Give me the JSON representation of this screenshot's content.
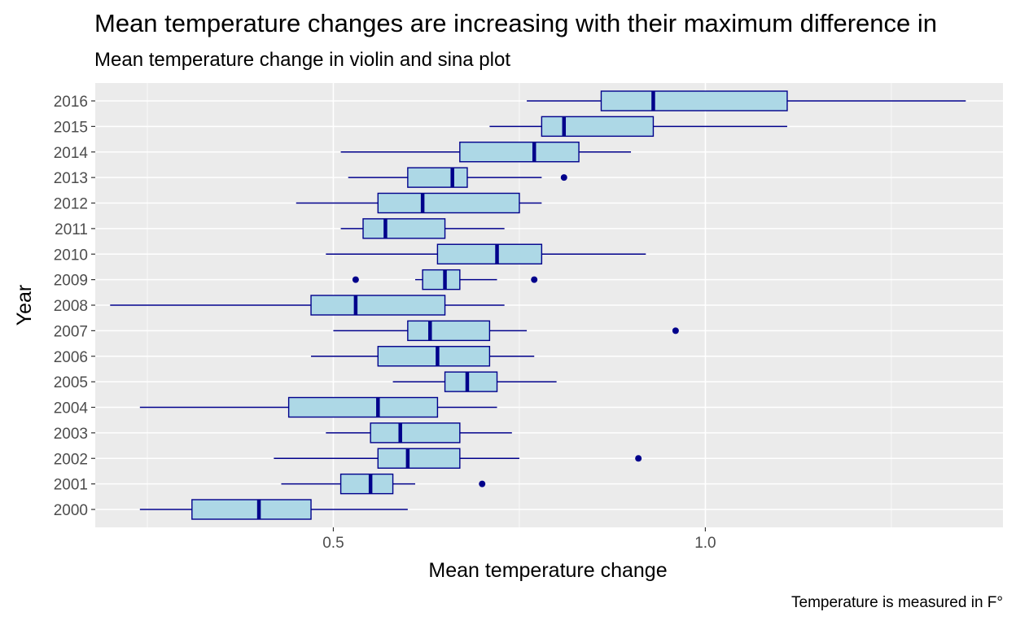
{
  "chart_data": {
    "type": "box",
    "title": "Mean temperature changes are increasing with their maximum difference in",
    "subtitle": "Mean temperature change in violin and sina plot",
    "xlabel": "Mean temperature change",
    "ylabel": "Year",
    "caption": "Temperature is measured in F°",
    "xlim": [
      0.18,
      1.4
    ],
    "x_ticks": [
      0.5,
      1.0
    ],
    "x_tick_labels": [
      "0.5",
      "1.0"
    ],
    "grid": true,
    "colors": {
      "panel": "#ebebeb",
      "grid": "#ffffff",
      "box_fill": "#add8e6",
      "box_stroke": "#00008b"
    },
    "categories": [
      "2000",
      "2001",
      "2002",
      "2003",
      "2004",
      "2005",
      "2006",
      "2007",
      "2008",
      "2009",
      "2010",
      "2011",
      "2012",
      "2013",
      "2014",
      "2015",
      "2016"
    ],
    "boxes": [
      {
        "year": "2000",
        "min": 0.24,
        "q1": 0.31,
        "median": 0.4,
        "q3": 0.47,
        "max": 0.6,
        "outliers": []
      },
      {
        "year": "2001",
        "min": 0.43,
        "q1": 0.51,
        "median": 0.55,
        "q3": 0.58,
        "max": 0.61,
        "outliers": [
          0.7
        ]
      },
      {
        "year": "2002",
        "min": 0.42,
        "q1": 0.56,
        "median": 0.6,
        "q3": 0.67,
        "max": 0.75,
        "outliers": [
          0.91
        ]
      },
      {
        "year": "2003",
        "min": 0.49,
        "q1": 0.55,
        "median": 0.59,
        "q3": 0.67,
        "max": 0.74,
        "outliers": []
      },
      {
        "year": "2004",
        "min": 0.24,
        "q1": 0.44,
        "median": 0.56,
        "q3": 0.64,
        "max": 0.72,
        "outliers": []
      },
      {
        "year": "2005",
        "min": 0.58,
        "q1": 0.65,
        "median": 0.68,
        "q3": 0.72,
        "max": 0.8,
        "outliers": []
      },
      {
        "year": "2006",
        "min": 0.47,
        "q1": 0.56,
        "median": 0.64,
        "q3": 0.71,
        "max": 0.77,
        "outliers": []
      },
      {
        "year": "2007",
        "min": 0.5,
        "q1": 0.6,
        "median": 0.63,
        "q3": 0.71,
        "max": 0.76,
        "outliers": [
          0.96
        ]
      },
      {
        "year": "2008",
        "min": 0.2,
        "q1": 0.47,
        "median": 0.53,
        "q3": 0.65,
        "max": 0.73,
        "outliers": []
      },
      {
        "year": "2009",
        "min": 0.61,
        "q1": 0.62,
        "median": 0.65,
        "q3": 0.67,
        "max": 0.72,
        "outliers": [
          0.53,
          0.77
        ]
      },
      {
        "year": "2010",
        "min": 0.49,
        "q1": 0.64,
        "median": 0.72,
        "q3": 0.78,
        "max": 0.92,
        "outliers": []
      },
      {
        "year": "2011",
        "min": 0.51,
        "q1": 0.54,
        "median": 0.57,
        "q3": 0.65,
        "max": 0.73,
        "outliers": []
      },
      {
        "year": "2012",
        "min": 0.45,
        "q1": 0.56,
        "median": 0.62,
        "q3": 0.75,
        "max": 0.78,
        "outliers": []
      },
      {
        "year": "2013",
        "min": 0.52,
        "q1": 0.6,
        "median": 0.66,
        "q3": 0.68,
        "max": 0.78,
        "outliers": [
          0.81
        ]
      },
      {
        "year": "2014",
        "min": 0.51,
        "q1": 0.67,
        "median": 0.77,
        "q3": 0.83,
        "max": 0.9,
        "outliers": []
      },
      {
        "year": "2015",
        "min": 0.71,
        "q1": 0.78,
        "median": 0.81,
        "q3": 0.93,
        "max": 1.11,
        "outliers": []
      },
      {
        "year": "2016",
        "min": 0.76,
        "q1": 0.86,
        "median": 0.93,
        "q3": 1.11,
        "max": 1.35,
        "outliers": []
      }
    ]
  }
}
